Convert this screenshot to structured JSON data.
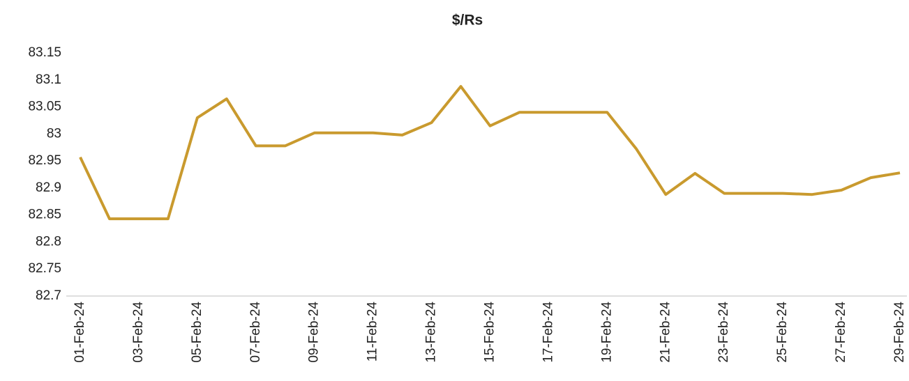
{
  "chart_data": {
    "type": "line",
    "title": "$/Rs",
    "categories": [
      "01-Feb-24",
      null,
      "03-Feb-24",
      null,
      "05-Feb-24",
      null,
      "07-Feb-24",
      null,
      "09-Feb-24",
      null,
      "11-Feb-24",
      null,
      "13-Feb-24",
      null,
      "15-Feb-24",
      null,
      "17-Feb-24",
      null,
      "19-Feb-24",
      null,
      "21-Feb-24",
      null,
      "23-Feb-24",
      null,
      "25-Feb-24",
      null,
      "27-Feb-24",
      null,
      "29-Feb-24"
    ],
    "series": [
      {
        "name": "$/Rs",
        "color": "#c99a2e",
        "values": [
          82.957,
          82.843,
          82.843,
          82.843,
          83.03,
          83.065,
          82.978,
          82.978,
          83.002,
          83.002,
          83.002,
          82.998,
          83.021,
          83.088,
          83.015,
          83.04,
          83.04,
          83.04,
          83.04,
          82.972,
          82.888,
          82.927,
          82.89,
          82.89,
          82.89,
          82.888,
          82.896,
          82.919,
          82.928
        ]
      }
    ],
    "ylim": [
      82.7,
      83.15
    ],
    "yticks": [
      82.7,
      82.75,
      82.8,
      82.85,
      82.9,
      82.95,
      83,
      83.05,
      83.1,
      83.15
    ],
    "grid": false
  }
}
